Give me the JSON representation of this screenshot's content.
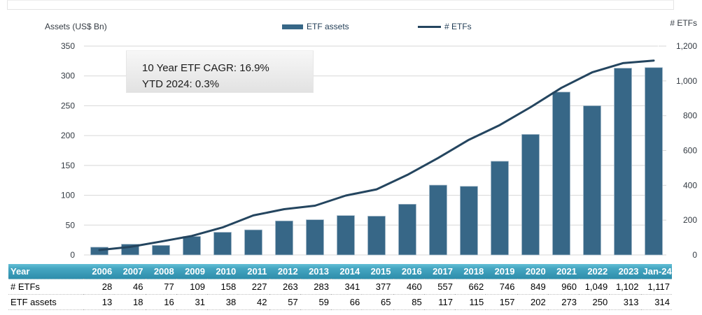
{
  "chart": {
    "left_axis_title": "Assets (US$ Bn)",
    "right_axis_title": "# ETFs",
    "legend": [
      {
        "label": "ETF assets",
        "swatch": "bar-swatch"
      },
      {
        "label": "# ETFs",
        "swatch": "line-swatch"
      }
    ],
    "annotation": {
      "line1": "10 Year ETF CAGR: 16.9%",
      "line2": "YTD 2024: 0.3%"
    },
    "colors": {
      "bar": "#376787",
      "bar_edge": "#a3b8c8",
      "line": "#24455f",
      "grid": "#d7d7d7",
      "tick_text": "#333a42",
      "legend_text": "#1f3b54",
      "table_header_teal": "#2e8eac"
    }
  },
  "chart_data": {
    "type": "combo",
    "categories": [
      "2006",
      "2007",
      "2008",
      "2009",
      "2010",
      "2011",
      "2012",
      "2013",
      "2014",
      "2015",
      "2016",
      "2017",
      "2018",
      "2019",
      "2020",
      "2021",
      "2022",
      "2023",
      "Jan-24"
    ],
    "series": [
      {
        "name": "ETF assets",
        "type": "bar",
        "axis": "left",
        "values": [
          13,
          18,
          16,
          31,
          38,
          42,
          57,
          59,
          66,
          65,
          85,
          117,
          115,
          157,
          202,
          273,
          250,
          313,
          314
        ]
      },
      {
        "name": "# ETFs",
        "type": "line",
        "axis": "right",
        "values": [
          28,
          46,
          77,
          109,
          158,
          227,
          263,
          283,
          341,
          377,
          460,
          557,
          662,
          746,
          849,
          960,
          1049,
          1102,
          1117
        ]
      }
    ],
    "title": "",
    "xlabel": "",
    "left_axis": {
      "title": "Assets (US$ Bn)",
      "min": 0,
      "max": 350,
      "tick_step": 50
    },
    "right_axis": {
      "title": "# ETFs",
      "min": 0,
      "max": 1200,
      "tick_step": 200
    },
    "grid": true,
    "legend_position": "top",
    "annotations": [
      "10 Year ETF CAGR: 16.9%",
      "YTD 2024: 0.3%"
    ]
  },
  "table": {
    "header": [
      "Year",
      "2006",
      "2007",
      "2008",
      "2009",
      "2010",
      "2011",
      "2012",
      "2013",
      "2014",
      "2015",
      "2016",
      "2017",
      "2018",
      "2019",
      "2020",
      "2021",
      "2022",
      "2023",
      "Jan-24"
    ],
    "rows": [
      {
        "label": "# ETFs",
        "values": [
          "28",
          "46",
          "77",
          "109",
          "158",
          "227",
          "263",
          "283",
          "341",
          "377",
          "460",
          "557",
          "662",
          "746",
          "849",
          "960",
          "1,049",
          "1,102",
          "1,117"
        ]
      },
      {
        "label": "ETF assets",
        "values": [
          "13",
          "18",
          "16",
          "31",
          "38",
          "42",
          "57",
          "59",
          "66",
          "65",
          "85",
          "117",
          "115",
          "157",
          "202",
          "273",
          "250",
          "313",
          "314"
        ]
      }
    ]
  }
}
